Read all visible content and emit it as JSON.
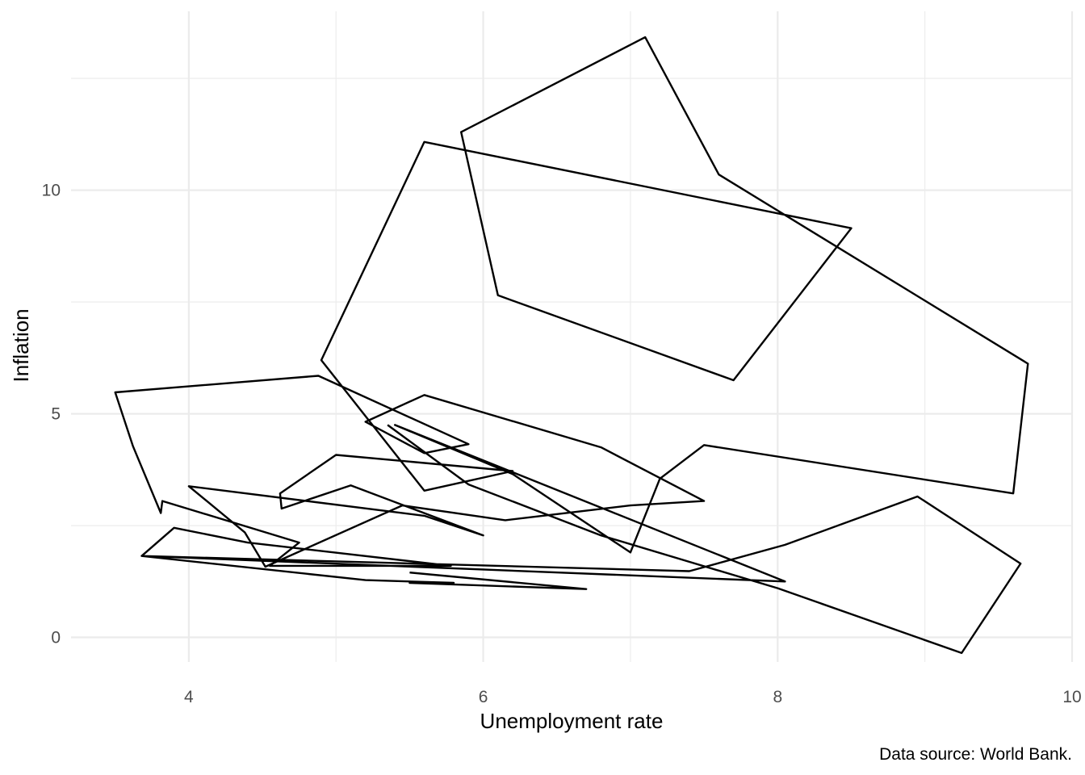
{
  "chart_data": {
    "type": "line",
    "xlabel": "Unemployment rate",
    "ylabel": "Inflation",
    "caption": "Data source: World Bank.",
    "xlim": [
      3.2,
      10.0
    ],
    "ylim": [
      -0.55,
      14.0
    ],
    "x_ticks": [
      4,
      6,
      8,
      10
    ],
    "y_ticks": [
      0,
      5,
      10
    ],
    "x_tick_labels": [
      "4",
      "6",
      "8",
      "10"
    ],
    "y_tick_labels": [
      "0",
      "5",
      "10"
    ],
    "x_minor": [
      5,
      7,
      9
    ],
    "y_minor": [
      2.5,
      7.5,
      12.5
    ],
    "grid": true,
    "line_color": "#000000",
    "series": [
      {
        "points": [
          [
            5.5,
            1.45
          ],
          [
            6.7,
            1.08
          ],
          [
            5.5,
            1.22
          ],
          [
            5.8,
            1.22
          ],
          [
            5.2,
            1.28
          ],
          [
            3.68,
            1.82
          ],
          [
            8.05,
            1.25
          ],
          [
            5.4,
            4.75
          ],
          [
            6.2,
            3.65
          ],
          [
            7.0,
            1.9
          ],
          [
            7.2,
            3.55
          ],
          [
            7.5,
            4.3
          ],
          [
            9.6,
            3.22
          ],
          [
            9.7,
            6.12
          ],
          [
            7.6,
            10.35
          ],
          [
            7.1,
            13.42
          ],
          [
            5.85,
            11.3
          ],
          [
            6.1,
            7.65
          ],
          [
            7.7,
            5.75
          ],
          [
            8.5,
            9.15
          ],
          [
            5.6,
            11.08
          ],
          [
            4.9,
            6.2
          ],
          [
            5.6,
            3.28
          ],
          [
            6.2,
            3.72
          ],
          [
            5.0,
            4.08
          ],
          [
            4.62,
            3.22
          ],
          [
            4.63,
            2.88
          ],
          [
            5.1,
            3.4
          ],
          [
            6.0,
            2.28
          ],
          [
            5.6,
            2.72
          ],
          [
            4.0,
            3.38
          ],
          [
            4.38,
            2.35
          ],
          [
            4.52,
            1.58
          ],
          [
            5.45,
            2.95
          ],
          [
            6.15,
            2.62
          ],
          [
            7.0,
            2.95
          ],
          [
            7.5,
            3.05
          ],
          [
            6.8,
            4.25
          ],
          [
            5.6,
            5.42
          ],
          [
            5.2,
            4.82
          ],
          [
            5.6,
            4.12
          ],
          [
            5.9,
            4.32
          ],
          [
            4.88,
            5.85
          ],
          [
            3.5,
            5.48
          ],
          [
            3.62,
            4.28
          ],
          [
            3.81,
            2.78
          ],
          [
            3.82,
            3.05
          ],
          [
            4.75,
            2.12
          ],
          [
            4.55,
            1.6
          ],
          [
            5.78,
            1.6
          ],
          [
            4.4,
            2.12
          ],
          [
            3.9,
            2.45
          ],
          [
            3.68,
            1.82
          ],
          [
            7.4,
            1.48
          ],
          [
            8.05,
            2.07
          ],
          [
            8.95,
            3.15
          ],
          [
            9.65,
            1.65
          ],
          [
            9.25,
            -0.35
          ],
          [
            8.0,
            1.1
          ],
          [
            6.8,
            2.28
          ],
          [
            5.9,
            3.42
          ],
          [
            5.35,
            4.75
          ]
        ]
      }
    ]
  }
}
